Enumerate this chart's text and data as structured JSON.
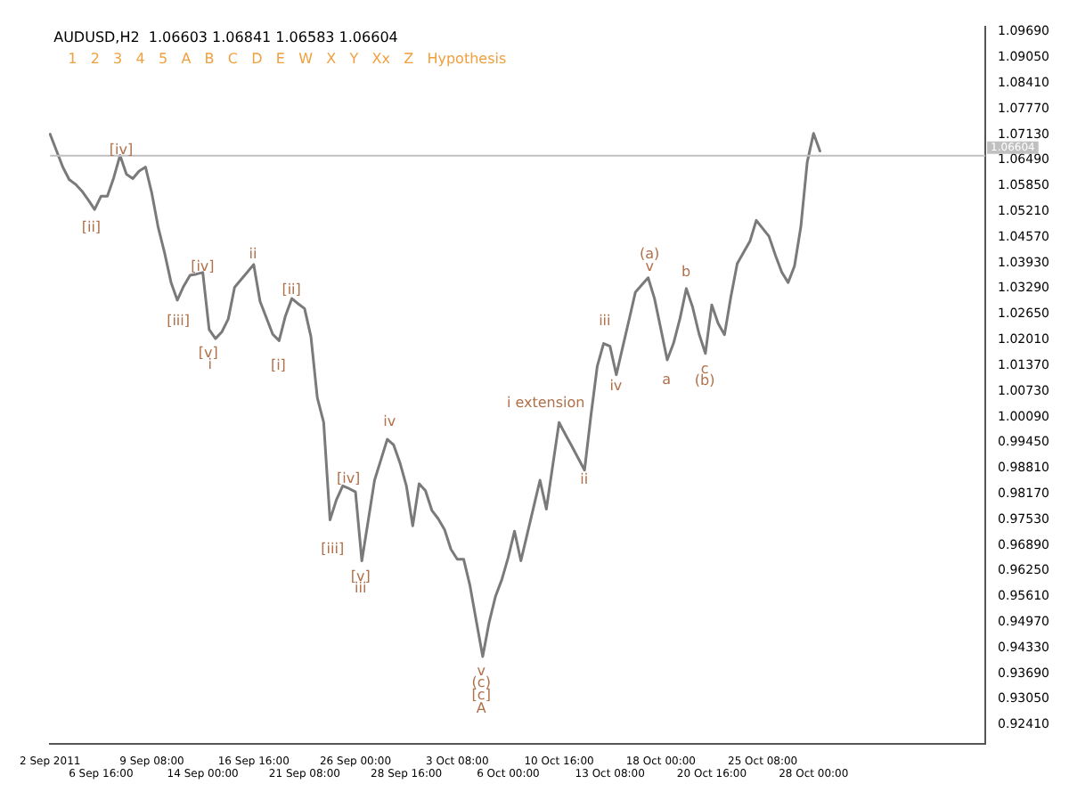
{
  "chart_data": {
    "type": "line",
    "title": "AUDUSD,H2  1.06603 1.06841 1.06583 1.06604",
    "subtitle": "1   2   3   4   5   A   B   C   D   E   W   X   Y   Xx   Z   Hypothesis",
    "categories": [
      "2 Sep 2011",
      null,
      null,
      null,
      null,
      null,
      null,
      null,
      "6 Sep 16:00",
      null,
      null,
      null,
      null,
      null,
      null,
      null,
      "9 Sep 08:00",
      null,
      null,
      null,
      null,
      null,
      null,
      null,
      "14 Sep 00:00",
      null,
      null,
      null,
      null,
      null,
      null,
      null,
      "16 Sep 16:00",
      null,
      null,
      null,
      null,
      null,
      null,
      null,
      "21 Sep 08:00",
      null,
      null,
      null,
      null,
      null,
      null,
      null,
      "26 Sep 00:00",
      null,
      null,
      null,
      null,
      null,
      null,
      null,
      "28 Sep 16:00",
      null,
      null,
      null,
      null,
      null,
      null,
      null,
      "3 Oct 08:00",
      null,
      null,
      null,
      null,
      null,
      null,
      null,
      "6 Oct 00:00",
      null,
      null,
      null,
      null,
      null,
      null,
      null,
      "10 Oct 16:00",
      null,
      null,
      null,
      null,
      null,
      null,
      null,
      "13 Oct 08:00",
      null,
      null,
      null,
      null,
      null,
      null,
      null,
      "18 Oct 00:00",
      null,
      null,
      null,
      null,
      null,
      null,
      null,
      "20 Oct 16:00",
      null,
      null,
      null,
      null,
      null,
      null,
      null,
      "25 Oct 08:00",
      null,
      null,
      null,
      null,
      null,
      null,
      null,
      "28 Oct 00:00",
      null,
      null,
      null,
      null,
      null,
      null,
      null,
      null,
      null,
      null,
      null,
      null,
      null,
      null,
      null,
      null,
      null,
      null,
      null,
      null,
      null,
      null,
      null,
      null,
      null,
      null,
      null
    ],
    "series": [
      {
        "color": "#7a7a7a",
        "values": [
          1.0714,
          1.0673,
          1.0632,
          1.0601,
          1.0589,
          1.0572,
          1.055,
          1.0526,
          1.0559,
          1.0559,
          1.0605,
          1.0661,
          1.0614,
          1.0603,
          1.0622,
          1.0632,
          1.0566,
          1.0481,
          1.0418,
          1.0345,
          1.03,
          1.0335,
          1.0362,
          1.0365,
          1.0369,
          1.0227,
          1.0204,
          1.0221,
          1.0253,
          1.0332,
          1.0351,
          1.037,
          1.0389,
          1.0297,
          1.0256,
          1.0215,
          1.0199,
          1.0261,
          1.0304,
          1.0291,
          1.0279,
          1.0209,
          1.0057,
          0.9995,
          0.9752,
          0.9802,
          0.9837,
          0.983,
          0.9822,
          0.965,
          0.975,
          0.9851,
          0.9902,
          0.9953,
          0.9939,
          0.9894,
          0.9837,
          0.9737,
          0.9842,
          0.9825,
          0.9776,
          0.9755,
          0.9728,
          0.9679,
          0.9654,
          0.9654,
          0.9588,
          0.9499,
          0.9411,
          0.9496,
          0.9561,
          0.9603,
          0.9658,
          0.9724,
          0.965,
          0.9717,
          0.9784,
          0.9851,
          0.9779,
          0.9887,
          0.9995,
          0.9965,
          0.9936,
          0.9906,
          0.9876,
          1.0011,
          1.0135,
          1.0192,
          1.0185,
          1.0114,
          1.0183,
          1.0251,
          1.032,
          1.0338,
          1.0356,
          1.0304,
          1.0228,
          1.0151,
          1.0193,
          1.0254,
          1.0329,
          1.0282,
          1.0216,
          1.0167,
          1.0288,
          1.0242,
          1.0214,
          1.0308,
          1.0391,
          1.0419,
          1.0447,
          1.0499,
          1.0479,
          1.0459,
          1.0412,
          1.037,
          1.0344,
          1.0385,
          1.0483,
          1.0644,
          1.0716,
          1.0672,
          null,
          null,
          null,
          null,
          null,
          null,
          null,
          null,
          null,
          null,
          null,
          null,
          null,
          null,
          null,
          null,
          null,
          null,
          null,
          null,
          null,
          null,
          null,
          null,
          null,
          null
        ]
      }
    ],
    "ylim": [
      0.9193,
      1.0981
    ],
    "yticks": [
      {
        "value": 0.9241,
        "label": "0.92410"
      },
      {
        "value": 0.9305,
        "label": "0.93050"
      },
      {
        "value": 0.9369,
        "label": "0.93690"
      },
      {
        "value": 0.9433,
        "label": "0.94330"
      },
      {
        "value": 0.9497,
        "label": "0.94970"
      },
      {
        "value": 0.9561,
        "label": "0.95610"
      },
      {
        "value": 0.9625,
        "label": "0.96250"
      },
      {
        "value": 0.9689,
        "label": "0.96890"
      },
      {
        "value": 0.9753,
        "label": "0.97530"
      },
      {
        "value": 0.9817,
        "label": "0.98170"
      },
      {
        "value": 0.9881,
        "label": "0.98810"
      },
      {
        "value": 0.9945,
        "label": "0.99450"
      },
      {
        "value": 1.0009,
        "label": "1.00090"
      },
      {
        "value": 1.0073,
        "label": "1.00730"
      },
      {
        "value": 1.0137,
        "label": "1.01370"
      },
      {
        "value": 1.0201,
        "label": "1.02010"
      },
      {
        "value": 1.0265,
        "label": "1.02650"
      },
      {
        "value": 1.0329,
        "label": "1.03290"
      },
      {
        "value": 1.0393,
        "label": "1.03930"
      },
      {
        "value": 1.0457,
        "label": "1.04570"
      },
      {
        "value": 1.0521,
        "label": "1.05210"
      },
      {
        "value": 1.0585,
        "label": "1.05850"
      },
      {
        "value": 1.0649,
        "label": "1.06490"
      },
      {
        "value": 1.0713,
        "label": "1.07130"
      },
      {
        "value": 1.0777,
        "label": "1.07770"
      },
      {
        "value": 1.0841,
        "label": "1.08410"
      },
      {
        "value": 1.0905,
        "label": "1.09050"
      },
      {
        "value": 1.0969,
        "label": "1.09690"
      }
    ],
    "ref_lines": [
      {
        "axis": "y",
        "value": 1.06604,
        "label": "1.06604",
        "color": "#c0c0c0"
      }
    ],
    "annotations": [
      "[iv]",
      "[ii]",
      "[iv]",
      "[iii]",
      "[v]",
      "i",
      "ii",
      "[ii]",
      "[i]",
      "iv",
      "[iv]",
      "[iii]",
      "[v]",
      "iii",
      "v",
      "(c)",
      "[c]",
      "A",
      "i extension",
      "ii",
      "iii",
      "iv",
      "(a)",
      "v",
      "a",
      "b",
      "c",
      "(b)"
    ]
  }
}
